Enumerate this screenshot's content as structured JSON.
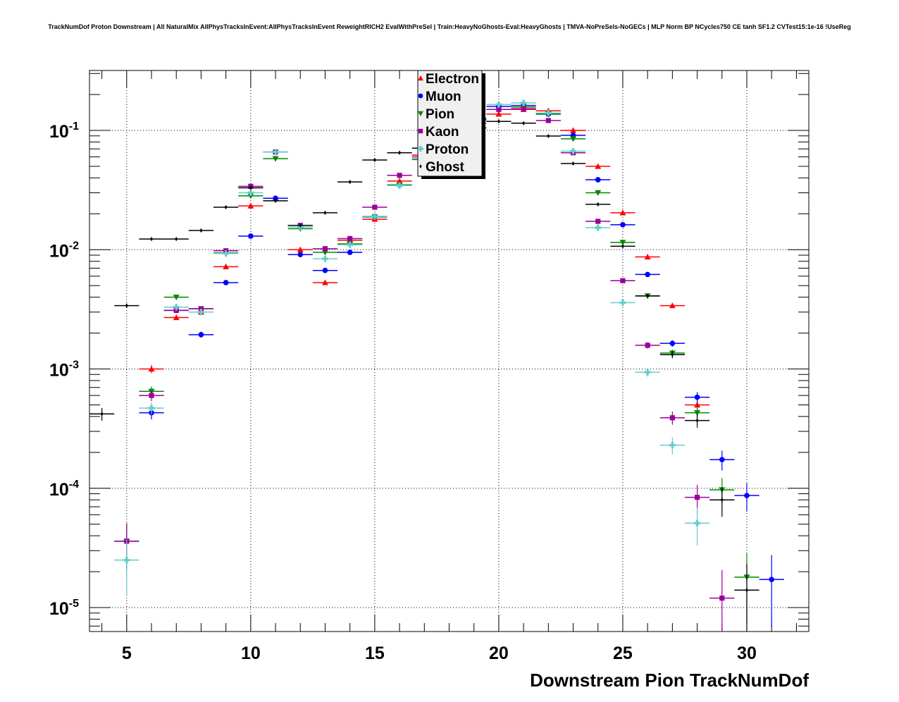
{
  "chart_data": {
    "type": "scatter",
    "title": "TrackNumDof Proton Downstream | All NaturalMix AllPhysTracksInEvent:AllPhysTracksInEvent ReweightRICH2 EvalWithPreSel | Train:HeavyNoGhosts-Eval:HeavyGhosts | TMVA-NoPreSels-NoGECs | MLP Norm BP NCycles750 CE tanh SF1.2 CVTest15:1e-16 !UseReg",
    "xlabel": "Downstream Pion TrackNumDof",
    "ylabel": "",
    "xlim": [
      3.5,
      32.5
    ],
    "ylim": [
      6.3e-06,
      0.318
    ],
    "yscale": "log",
    "grid": true,
    "legend_position": "top-center",
    "xticks": [
      "5",
      "10",
      "15",
      "20",
      "25",
      "30"
    ],
    "xtick_values": [
      5,
      10,
      15,
      20,
      25,
      30
    ],
    "yticks": [
      {
        "base": "10",
        "exp": "-1",
        "value": 0.1
      },
      {
        "base": "10",
        "exp": "-2",
        "value": 0.01
      },
      {
        "base": "10",
        "exp": "-3",
        "value": 0.001
      },
      {
        "base": "10",
        "exp": "-4",
        "value": 0.0001
      },
      {
        "base": "10",
        "exp": "-5",
        "value": 1e-05
      }
    ],
    "series": [
      {
        "name": "Electron",
        "color": "#ff0000",
        "marker": "triangle-up",
        "x": [
          6,
          7,
          8,
          9,
          10,
          11,
          12,
          13,
          14,
          15,
          16,
          17,
          18,
          19,
          20,
          21,
          22,
          23,
          24,
          25,
          26,
          27,
          28
        ],
        "y": [
          0.001,
          0.0027,
          0.003,
          0.0072,
          0.0233,
          0.027,
          0.01,
          0.0053,
          0.012,
          0.018,
          0.0376,
          0.06,
          0.085,
          0.115,
          0.137,
          0.15,
          0.146,
          0.1,
          0.05,
          0.0204,
          0.0087,
          0.0034,
          0.0005
        ]
      },
      {
        "name": "Muon",
        "color": "#0000ff",
        "marker": "circle",
        "x": [
          6,
          7,
          8,
          9,
          10,
          11,
          12,
          13,
          14,
          15,
          16,
          17,
          18,
          19,
          20,
          21,
          22,
          23,
          24,
          25,
          26,
          27,
          28,
          29,
          30,
          31
        ],
        "y": [
          0.00043,
          0.0031,
          0.00194,
          0.0053,
          0.013,
          0.027,
          0.0091,
          0.0067,
          0.0095,
          0.019,
          0.035,
          0.058,
          0.09,
          0.125,
          0.159,
          0.162,
          0.137,
          0.091,
          0.0386,
          0.0162,
          0.0062,
          0.00164,
          0.00058,
          0.000174,
          8.7e-05,
          1.72e-05
        ]
      },
      {
        "name": "Pion",
        "color": "#008800",
        "marker": "triangle-down",
        "x": [
          5,
          6,
          7,
          8,
          9,
          10,
          11,
          12,
          13,
          14,
          15,
          16,
          17,
          18,
          19,
          20,
          21,
          22,
          23,
          24,
          25,
          26,
          27,
          28,
          29,
          30
        ],
        "y": [
          3.6e-05,
          0.00065,
          0.004,
          0.0032,
          0.0094,
          0.0283,
          0.058,
          0.015,
          0.0095,
          0.0112,
          0.0188,
          0.035,
          0.057,
          0.088,
          0.122,
          0.15,
          0.157,
          0.137,
          0.085,
          0.03,
          0.0115,
          0.0041,
          0.00136,
          0.00043,
          9.7e-05,
          1.8e-05
        ]
      },
      {
        "name": "Kaon",
        "color": "#990099",
        "marker": "square",
        "x": [
          5,
          6,
          7,
          8,
          9,
          10,
          11,
          12,
          13,
          14,
          15,
          16,
          17,
          18,
          19,
          20,
          21,
          22,
          23,
          24,
          25,
          26,
          27,
          28,
          29
        ],
        "y": [
          3.6e-05,
          0.0006,
          0.0031,
          0.0032,
          0.0098,
          0.034,
          0.066,
          0.016,
          0.0102,
          0.0124,
          0.0227,
          0.042,
          0.062,
          0.09,
          0.122,
          0.15,
          0.152,
          0.121,
          0.065,
          0.0173,
          0.0055,
          0.00158,
          0.00039,
          8.4e-05,
          1.2e-05
        ]
      },
      {
        "name": "Proton",
        "color": "#66cccc",
        "marker": "cross",
        "x": [
          5,
          6,
          7,
          8,
          9,
          10,
          11,
          12,
          13,
          14,
          15,
          16,
          17,
          18,
          19,
          20,
          21,
          22,
          23,
          24,
          25,
          26,
          27,
          28
        ],
        "y": [
          2.5e-05,
          0.00047,
          0.0033,
          0.003,
          0.0093,
          0.03,
          0.066,
          0.0155,
          0.0084,
          0.011,
          0.019,
          0.0345,
          0.058,
          0.092,
          0.128,
          0.165,
          0.17,
          0.14,
          0.067,
          0.0153,
          0.0036,
          0.00094,
          0.00023,
          5.1e-05
        ]
      },
      {
        "name": "Ghost",
        "color": "#000000",
        "marker": "diamond",
        "x": [
          4,
          5,
          6,
          7,
          8,
          9,
          10,
          11,
          12,
          13,
          14,
          15,
          16,
          17,
          18,
          19,
          20,
          21,
          22,
          23,
          24,
          25,
          26,
          27,
          28,
          29,
          30
        ],
        "y": [
          0.00042,
          0.0034,
          0.0123,
          0.0123,
          0.0145,
          0.0227,
          0.033,
          0.0257,
          0.016,
          0.0204,
          0.037,
          0.0565,
          0.065,
          0.071,
          0.09,
          0.105,
          0.119,
          0.115,
          0.0897,
          0.0528,
          0.024,
          0.0107,
          0.0041,
          0.00132,
          0.00037,
          8e-05,
          1.4e-05
        ]
      }
    ]
  }
}
